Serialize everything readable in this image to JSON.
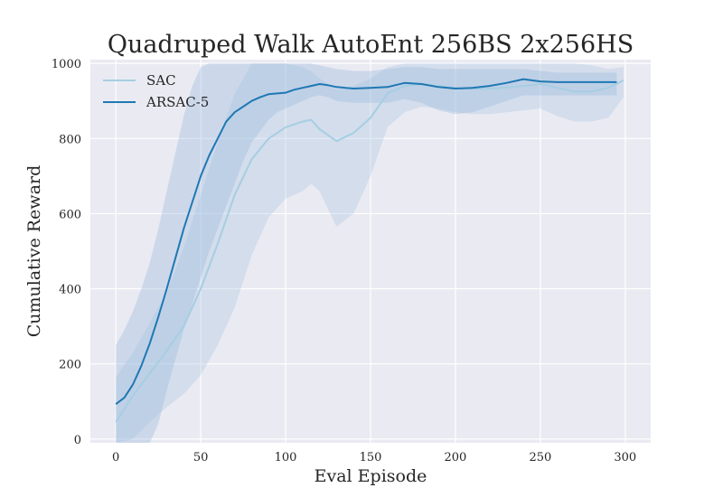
{
  "chart_data": {
    "type": "line",
    "title": "Quadruped Walk AutoEnt 256BS 2x256HS",
    "xlabel": "Eval Episode",
    "ylabel": "Cumulative Reward",
    "xlim": [
      -15,
      315
    ],
    "ylim": [
      -10,
      1010
    ],
    "xticks": [
      0,
      50,
      100,
      150,
      200,
      250,
      300
    ],
    "yticks": [
      0,
      200,
      400,
      600,
      800,
      1000
    ],
    "grid": true,
    "legend_position": "top-left",
    "colors": {
      "background": "#eaeaf2",
      "grid": "#ffffff",
      "SAC": "#a6cee3",
      "ARSAC-5": "#1f78b4",
      "band": "#9fbfdf"
    },
    "series": [
      {
        "name": "SAC",
        "x": [
          0,
          10,
          20,
          30,
          40,
          50,
          60,
          70,
          80,
          90,
          100,
          110,
          115,
          120,
          130,
          140,
          150,
          160,
          170,
          180,
          190,
          200,
          210,
          220,
          230,
          240,
          250,
          260,
          270,
          280,
          290,
          299
        ],
        "values": [
          45,
          115,
          175,
          235,
          300,
          400,
          520,
          650,
          745,
          800,
          830,
          845,
          850,
          825,
          793,
          815,
          855,
          920,
          940,
          945,
          940,
          935,
          932,
          932,
          936,
          940,
          945,
          935,
          925,
          925,
          935,
          955
        ],
        "upper": [
          165,
          230,
          310,
          390,
          510,
          650,
          790,
          920,
          1000,
          1000,
          1000,
          990,
          980,
          960,
          930,
          940,
          960,
          990,
          1000,
          1000,
          1000,
          1000,
          1000,
          1000,
          1000,
          1000,
          1000,
          1000,
          1000,
          995,
          985,
          990
        ],
        "lower": [
          -10,
          0,
          45,
          85,
          120,
          170,
          250,
          350,
          490,
          590,
          640,
          660,
          680,
          660,
          565,
          600,
          700,
          830,
          870,
          885,
          880,
          870,
          865,
          865,
          870,
          875,
          880,
          860,
          845,
          845,
          855,
          910
        ]
      },
      {
        "name": "ARSAC-5",
        "x": [
          0,
          5,
          10,
          15,
          20,
          25,
          30,
          35,
          40,
          45,
          50,
          55,
          60,
          65,
          70,
          75,
          80,
          85,
          90,
          95,
          100,
          105,
          110,
          115,
          120,
          125,
          130,
          140,
          150,
          160,
          170,
          180,
          190,
          200,
          210,
          220,
          230,
          240,
          250,
          260,
          270,
          280,
          290,
          295
        ],
        "values": [
          93,
          110,
          145,
          195,
          255,
          325,
          400,
          480,
          560,
          630,
          700,
          755,
          800,
          845,
          870,
          885,
          900,
          910,
          918,
          920,
          922,
          930,
          935,
          940,
          945,
          942,
          937,
          933,
          935,
          937,
          948,
          945,
          937,
          933,
          935,
          940,
          948,
          958,
          952,
          950,
          950,
          950,
          950,
          950
        ],
        "upper": [
          250,
          290,
          340,
          400,
          470,
          560,
          660,
          760,
          860,
          940,
          990,
          1000,
          1000,
          1000,
          1000,
          1000,
          1000,
          1000,
          1000,
          1000,
          1000,
          1000,
          1000,
          1000,
          995,
          990,
          985,
          980,
          980,
          985,
          990,
          990,
          985,
          985,
          985,
          985,
          985,
          985,
          980,
          975,
          975,
          975,
          975,
          975
        ],
        "lower": [
          -10,
          -10,
          -10,
          -10,
          -10,
          40,
          130,
          210,
          290,
          360,
          430,
          500,
          560,
          620,
          680,
          740,
          790,
          820,
          850,
          870,
          880,
          890,
          900,
          910,
          915,
          910,
          900,
          895,
          895,
          895,
          905,
          895,
          875,
          865,
          870,
          885,
          900,
          915,
          915,
          915,
          915,
          915,
          915,
          915
        ]
      }
    ]
  }
}
